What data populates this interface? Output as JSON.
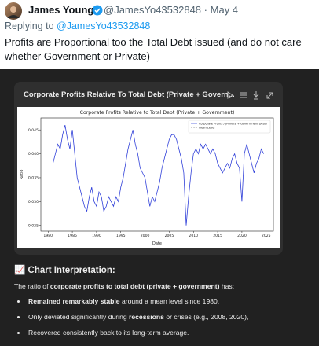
{
  "tweet": {
    "author": "James Young",
    "handle": "@JamesYo43532848",
    "separator": "·",
    "date": "May 4",
    "reply_prefix": "Replying to",
    "replying_to": "@JamesYo43532848",
    "text": "Profits are Proportional too the Total Debt issued (and do not care whether Government or Private)"
  },
  "card_title": "Corporate Profits Relative To Total Debt (Private + Govern...",
  "chart_data": {
    "type": "line",
    "title": "Corporate Profits Relative to Total Debt (Private + Government)",
    "x_label": "Date",
    "y_label": "Ratio",
    "x": [
      1981,
      1981.5,
      1982,
      1982.5,
      1983,
      1983.5,
      1984,
      1984.5,
      1985,
      1985.5,
      1986,
      1986.5,
      1987,
      1987.5,
      1988,
      1988.5,
      1989,
      1989.5,
      1990,
      1990.5,
      1991,
      1991.5,
      1992,
      1992.5,
      1993,
      1993.5,
      1994,
      1994.5,
      1995,
      1995.5,
      1996,
      1996.5,
      1997,
      1997.5,
      1998,
      1998.5,
      1999,
      1999.5,
      2000,
      2000.5,
      2001,
      2001.5,
      2002,
      2002.5,
      2003,
      2003.5,
      2004,
      2004.5,
      2005,
      2005.5,
      2006,
      2006.5,
      2007,
      2007.5,
      2008,
      2008.5,
      2009,
      2009.5,
      2010,
      2010.5,
      2011,
      2011.5,
      2012,
      2012.5,
      2013,
      2013.5,
      2014,
      2014.5,
      2015,
      2015.5,
      2016,
      2016.5,
      2017,
      2017.5,
      2018,
      2018.5,
      2019,
      2019.5,
      2020,
      2020.5,
      2021,
      2021.5,
      2022,
      2022.5,
      2023,
      2023.5,
      2024,
      2024.5
    ],
    "series": [
      {
        "name": "Corporate Profits / (Private + Government Debt)",
        "color": "#2f3fd9",
        "values": [
          0.038,
          0.04,
          0.042,
          0.041,
          0.044,
          0.046,
          0.043,
          0.041,
          0.045,
          0.04,
          0.035,
          0.033,
          0.031,
          0.029,
          0.028,
          0.031,
          0.033,
          0.03,
          0.029,
          0.032,
          0.031,
          0.028,
          0.029,
          0.031,
          0.03,
          0.029,
          0.031,
          0.03,
          0.033,
          0.035,
          0.038,
          0.041,
          0.043,
          0.045,
          0.042,
          0.04,
          0.037,
          0.036,
          0.035,
          0.032,
          0.029,
          0.031,
          0.03,
          0.032,
          0.034,
          0.037,
          0.039,
          0.041,
          0.043,
          0.044,
          0.044,
          0.043,
          0.041,
          0.039,
          0.036,
          0.025,
          0.031,
          0.036,
          0.04,
          0.041,
          0.04,
          0.042,
          0.041,
          0.042,
          0.041,
          0.04,
          0.041,
          0.04,
          0.038,
          0.037,
          0.036,
          0.037,
          0.038,
          0.037,
          0.039,
          0.04,
          0.038,
          0.037,
          0.03,
          0.04,
          0.042,
          0.04,
          0.038,
          0.036,
          0.038,
          0.039,
          0.041,
          0.04
        ]
      }
    ],
    "mean_line": {
      "name": "Mean Level",
      "value": 0.0372,
      "color": "#808080"
    },
    "xlim": [
      1978.5,
      2026.5
    ],
    "ylim": [
      0.0238,
      0.0475
    ],
    "xticks": [
      1980,
      1985,
      1990,
      1995,
      2000,
      2005,
      2010,
      2015,
      2020,
      2025
    ],
    "yticks": [
      0.025,
      {
        "value": 0.03,
        "label": "0.030"
      },
      0.035,
      {
        "value": 0.04,
        "label": "0.040"
      },
      0.045
    ],
    "legend": "upper right",
    "grid": false
  },
  "interpretation": {
    "heading": "📈 Chart Interpretation:",
    "intro": [
      {
        "text": "The ratio of ",
        "bold": false
      },
      {
        "text": "corporate profits to total debt (private + government)",
        "bold": true
      },
      {
        "text": " has:",
        "bold": false
      }
    ],
    "bullets": [
      [
        {
          "text": "Remained remarkably stable",
          "bold": true
        },
        {
          "text": " around a mean level since 1980,",
          "bold": false
        }
      ],
      [
        {
          "text": "Only deviated significantly during ",
          "bold": false
        },
        {
          "text": "recessions",
          "bold": true
        },
        {
          "text": " or crises (e.g., 2008, 2020),",
          "bold": false
        }
      ],
      [
        {
          "text": "Recovered consistently back to its long-term average.",
          "bold": false
        }
      ]
    ]
  }
}
